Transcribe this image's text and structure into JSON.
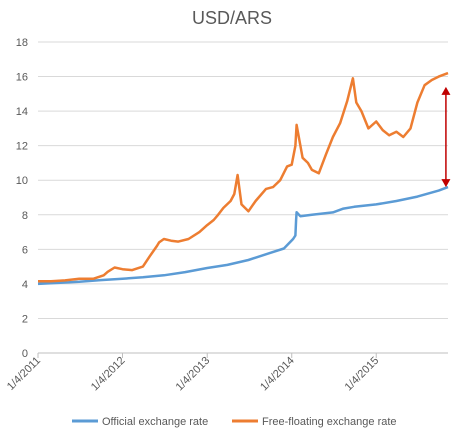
{
  "chart_data": {
    "type": "line",
    "title": "USD/ARS",
    "xlabel": "",
    "ylabel": "",
    "ylim": [
      0,
      18
    ],
    "yticks": [
      0,
      2,
      4,
      6,
      8,
      10,
      12,
      14,
      16,
      18
    ],
    "xlim": [
      "2011-01-04",
      "2015-11-10"
    ],
    "xticks": [
      "1/4/2011",
      "1/4/2012",
      "1/4/2013",
      "1/4/2014",
      "1/4/2015"
    ],
    "grid": true,
    "legend_position": "bottom",
    "colors": {
      "official": "#5b9bd5",
      "free": "#ed7d31",
      "arrow": "#c00000"
    },
    "series": [
      {
        "name": "Official exchange rate",
        "x": [
          "2011-01-04",
          "2011-04-01",
          "2011-07-01",
          "2011-10-01",
          "2012-01-04",
          "2012-04-01",
          "2012-07-01",
          "2012-10-01",
          "2013-01-04",
          "2013-04-01",
          "2013-07-01",
          "2013-10-01",
          "2013-12-01",
          "2014-01-10",
          "2014-01-20",
          "2014-01-23",
          "2014-01-25",
          "2014-02-10",
          "2014-04-01",
          "2014-07-01",
          "2014-08-15",
          "2014-10-01",
          "2015-01-04",
          "2015-04-01",
          "2015-07-01",
          "2015-10-01",
          "2015-11-10"
        ],
        "values": [
          4.0,
          4.06,
          4.12,
          4.22,
          4.3,
          4.38,
          4.5,
          4.68,
          4.92,
          5.1,
          5.38,
          5.78,
          6.05,
          6.6,
          6.8,
          7.7,
          8.15,
          7.92,
          8.0,
          8.14,
          8.36,
          8.46,
          8.6,
          8.8,
          9.05,
          9.4,
          9.6
        ]
      },
      {
        "name": "Free-floating exchange rate",
        "x": [
          "2011-01-04",
          "2011-03-01",
          "2011-05-01",
          "2011-07-01",
          "2011-09-01",
          "2011-10-15",
          "2011-11-01",
          "2011-12-01",
          "2012-01-04",
          "2012-02-15",
          "2012-04-01",
          "2012-05-01",
          "2012-06-01",
          "2012-06-10",
          "2012-07-01",
          "2012-08-01",
          "2012-09-01",
          "2012-10-15",
          "2012-12-01",
          "2013-01-04",
          "2013-02-01",
          "2013-02-20",
          "2013-03-15",
          "2013-04-15",
          "2013-05-01",
          "2013-05-15",
          "2013-06-01",
          "2013-07-01",
          "2013-08-01",
          "2013-09-15",
          "2013-10-15",
          "2013-11-15",
          "2013-12-15",
          "2014-01-04",
          "2014-01-20",
          "2014-01-25",
          "2014-02-20",
          "2014-03-15",
          "2014-04-01",
          "2014-05-01",
          "2014-06-01",
          "2014-07-01",
          "2014-08-01",
          "2014-09-01",
          "2014-09-25",
          "2014-10-10",
          "2014-11-01",
          "2014-12-01",
          "2015-01-04",
          "2015-02-01",
          "2015-03-01",
          "2015-04-01",
          "2015-05-01",
          "2015-06-01",
          "2015-07-01",
          "2015-08-01",
          "2015-09-01",
          "2015-10-01",
          "2015-11-10"
        ],
        "values": [
          4.15,
          4.15,
          4.2,
          4.3,
          4.3,
          4.5,
          4.7,
          4.95,
          4.85,
          4.8,
          5.0,
          5.6,
          6.2,
          6.4,
          6.6,
          6.5,
          6.45,
          6.6,
          7.0,
          7.4,
          7.7,
          8.0,
          8.4,
          8.8,
          9.2,
          10.3,
          8.6,
          8.2,
          8.8,
          9.5,
          9.6,
          10.0,
          10.8,
          10.9,
          12.0,
          13.2,
          11.3,
          11.0,
          10.6,
          10.4,
          11.5,
          12.5,
          13.3,
          14.6,
          15.9,
          14.5,
          14.0,
          13.0,
          13.4,
          12.9,
          12.6,
          12.8,
          12.5,
          13.0,
          14.5,
          15.5,
          15.8,
          16.0,
          16.2
        ]
      }
    ],
    "annotations": [
      {
        "type": "double-arrow",
        "x": "2015-11-01",
        "y_from": 9.6,
        "y_to": 15.4
      }
    ]
  }
}
